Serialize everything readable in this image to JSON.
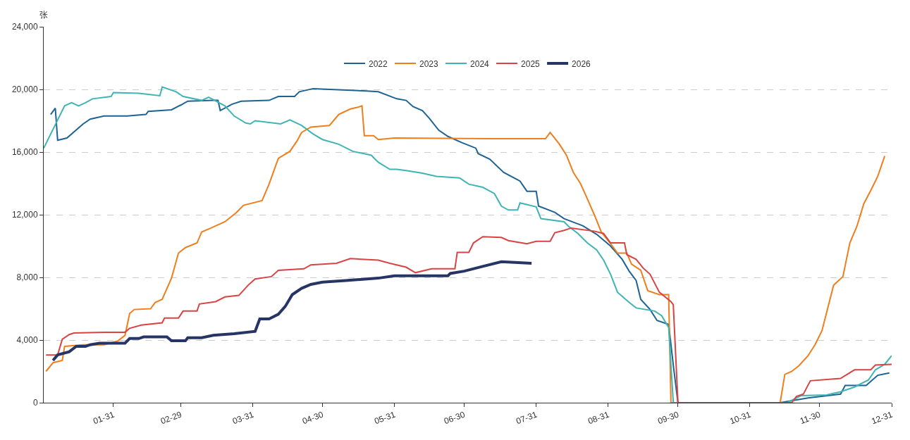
{
  "chart_data": {
    "type": "line",
    "ylabel": "张",
    "legend": "top",
    "grid": "y",
    "marker": "none",
    "line_style": "solid",
    "xlim": [
      "--01-01",
      "--12-31"
    ],
    "xticks": [
      {
        "value": "--01-31",
        "label": "01-31"
      },
      {
        "value": "--02-29",
        "label": "02-29"
      },
      {
        "value": "--03-31",
        "label": "03-31"
      },
      {
        "value": "--04-30",
        "label": "04-30"
      },
      {
        "value": "--05-31",
        "label": "05-31"
      },
      {
        "value": "--06-30",
        "label": "06-30"
      },
      {
        "value": "--07-31",
        "label": "07-31"
      },
      {
        "value": "--08-31",
        "label": "08-31"
      },
      {
        "value": "--09-30",
        "label": "09-30"
      },
      {
        "value": "--10-31",
        "label": "10-31"
      },
      {
        "value": "--11-30",
        "label": "11-30"
      },
      {
        "value": "--12-31",
        "label": "12-31"
      }
    ],
    "ylim": [
      0,
      24000
    ],
    "yticks": [
      {
        "value": 0,
        "label": "0"
      },
      {
        "value": 4000,
        "label": "4,000"
      },
      {
        "value": 8000,
        "label": "8,000"
      },
      {
        "value": 12000,
        "label": "12,000"
      },
      {
        "value": 16000,
        "label": "16,000"
      },
      {
        "value": 20000,
        "label": "20,000"
      },
      {
        "value": 24000,
        "label": "24,000"
      }
    ],
    "series": [
      {
        "name": "2022",
        "color": "#1d6394",
        "x": [
          "--01-04",
          "--01-06",
          "--01-07",
          "--01-11",
          "--01-18",
          "--01-21",
          "--01-27",
          "--02-06",
          "--02-14",
          "--02-15",
          "--02-25",
          "--02-29",
          "--03-03",
          "--03-14",
          "--03-16",
          "--03-17",
          "--03-22",
          "--03-26",
          "--04-07",
          "--04-11",
          "--04-18",
          "--04-20",
          "--04-26",
          "--05-19",
          "--05-24",
          "--06-01",
          "--06-05",
          "--06-08",
          "--06-12",
          "--06-15",
          "--06-19",
          "--06-23",
          "--06-29",
          "--07-05",
          "--07-06",
          "--07-11",
          "--07-17",
          "--07-24",
          "--07-27",
          "--07-31",
          "--08-01",
          "--08-08",
          "--08-12",
          "--08-20",
          "--08-26",
          "--09-01",
          "--09-06",
          "--09-09",
          "--09-12",
          "--09-14",
          "--09-18",
          "--09-21",
          "--09-26",
          "--09-28",
          "--09-30",
          "--11-13",
          "--11-25",
          "--12-09",
          "--12-11",
          "--12-20",
          "--12-25",
          "--12-30"
        ],
        "values": [
          18400,
          18800,
          16750,
          16900,
          17800,
          18100,
          18300,
          18300,
          18400,
          18600,
          18700,
          19000,
          19250,
          19300,
          19300,
          18650,
          19050,
          19250,
          19300,
          19550,
          19550,
          19850,
          20050,
          19900,
          19850,
          19400,
          19300,
          18900,
          18650,
          18150,
          17400,
          17000,
          16600,
          16250,
          15900,
          15550,
          14700,
          14150,
          13500,
          13500,
          12550,
          12150,
          11750,
          11300,
          10750,
          10000,
          9150,
          8400,
          7800,
          6600,
          5950,
          5250,
          5000,
          2400,
          0,
          0,
          300,
          550,
          1100,
          1100,
          1750,
          1900
        ]
      },
      {
        "name": "2023",
        "color": "#ef7e1d",
        "x": [
          "--01-02",
          "--01-05",
          "--01-09",
          "--01-10",
          "--01-18",
          "--01-27",
          "--02-02",
          "--02-05",
          "--02-07",
          "--02-09",
          "--02-16",
          "--02-18",
          "--02-21",
          "--02-25",
          "--02-28",
          "--03-02",
          "--03-07",
          "--03-09",
          "--03-13",
          "--03-19",
          "--03-24",
          "--03-27",
          "--04-04",
          "--04-07",
          "--04-11",
          "--04-16",
          "--04-19",
          "--04-21",
          "--04-25",
          "--05-03",
          "--05-07",
          "--05-12",
          "--05-15",
          "--05-17",
          "--05-18",
          "--05-22",
          "--05-24",
          "--05-31",
          "--07-11",
          "--08-04",
          "--08-06",
          "--08-10",
          "--08-13",
          "--08-16",
          "--08-19",
          "--08-21",
          "--08-25",
          "--08-28",
          "--09-01",
          "--09-04",
          "--09-08",
          "--09-10",
          "--09-14",
          "--09-17",
          "--09-22",
          "--09-26",
          "--09-27",
          "--11-13",
          "--11-15",
          "--11-18",
          "--11-21",
          "--11-25",
          "--11-28",
          "--12-01",
          "--12-06",
          "--12-10",
          "--12-13",
          "--12-16",
          "--12-19",
          "--12-22",
          "--12-25",
          "--12-28"
        ],
        "values": [
          2000,
          2550,
          2700,
          3600,
          3700,
          3700,
          3950,
          4300,
          5700,
          5950,
          6000,
          6400,
          6600,
          7950,
          9550,
          9900,
          10200,
          10900,
          11150,
          11550,
          12150,
          12600,
          12900,
          13950,
          15600,
          16050,
          16700,
          17250,
          17600,
          17700,
          18400,
          18750,
          18850,
          18950,
          17050,
          17050,
          16800,
          16900,
          16850,
          16850,
          17250,
          16500,
          15800,
          14700,
          14000,
          13350,
          12000,
          10900,
          10150,
          9550,
          9550,
          8850,
          8450,
          7150,
          6900,
          6900,
          0,
          0,
          1800,
          2000,
          2350,
          3000,
          3700,
          4600,
          7500,
          8050,
          10200,
          11250,
          12700,
          13550,
          14450,
          15750
        ]
      },
      {
        "name": "2024",
        "color": "#3fb4b4",
        "x": [
          "--01-01",
          "--01-04",
          "--01-07",
          "--01-10",
          "--01-13",
          "--01-16",
          "--01-19",
          "--01-22",
          "--01-30",
          "--01-31",
          "--02-11",
          "--02-20",
          "--02-21",
          "--02-27",
          "--03-01",
          "--03-09",
          "--03-12",
          "--03-19",
          "--03-23",
          "--03-28",
          "--03-30",
          "--04-01",
          "--04-12",
          "--04-16",
          "--04-21",
          "--04-26",
          "--04-30",
          "--05-07",
          "--05-13",
          "--05-21",
          "--05-24",
          "--05-29",
          "--06-01",
          "--06-06",
          "--06-12",
          "--06-18",
          "--06-28",
          "--07-02",
          "--07-08",
          "--07-13",
          "--07-16",
          "--07-19",
          "--07-23",
          "--07-24",
          "--07-31",
          "--08-02",
          "--08-12",
          "--08-14",
          "--08-18",
          "--08-22",
          "--08-26",
          "--08-29",
          "--09-01",
          "--09-04",
          "--09-09",
          "--09-12",
          "--09-20",
          "--09-23",
          "--09-26",
          "--09-28",
          "--11-16",
          "--11-22",
          "--12-03",
          "--12-09",
          "--12-15",
          "--12-21",
          "--12-24",
          "--12-28",
          "--12-31"
        ],
        "values": [
          16250,
          17150,
          18050,
          18950,
          19150,
          18950,
          19150,
          19400,
          19550,
          19800,
          19750,
          19600,
          20150,
          19850,
          19550,
          19300,
          19500,
          18950,
          18300,
          17850,
          17800,
          18000,
          17800,
          18050,
          17700,
          17150,
          16800,
          16500,
          16050,
          15800,
          15350,
          14900,
          14900,
          14800,
          14650,
          14450,
          14350,
          13950,
          13750,
          13350,
          12550,
          12300,
          12300,
          12750,
          12500,
          11750,
          11550,
          11250,
          10800,
          10200,
          9750,
          9100,
          8200,
          7050,
          6400,
          6050,
          5850,
          5550,
          4800,
          0,
          0,
          450,
          500,
          700,
          1000,
          1450,
          2100,
          2450,
          3000
        ]
      },
      {
        "name": "2025",
        "color": "#d94343",
        "x": [
          "--01-02",
          "--01-07",
          "--01-09",
          "--01-12",
          "--01-14",
          "--01-27",
          "--02-05",
          "--02-07",
          "--02-12",
          "--02-21",
          "--02-22",
          "--02-28",
          "--03-01",
          "--03-07",
          "--03-08",
          "--03-15",
          "--03-19",
          "--03-25",
          "--03-29",
          "--04-01",
          "--04-08",
          "--04-11",
          "--04-22",
          "--04-25",
          "--05-06",
          "--05-12",
          "--05-24",
          "--05-29",
          "--06-05",
          "--06-09",
          "--06-16",
          "--06-26",
          "--06-27",
          "--07-02",
          "--07-04",
          "--07-08",
          "--07-16",
          "--07-19",
          "--07-27",
          "--07-31",
          "--08-06",
          "--08-08",
          "--08-12",
          "--08-15",
          "--08-25",
          "--08-29",
          "--09-01",
          "--09-07",
          "--09-08",
          "--09-12",
          "--09-15",
          "--09-18",
          "--09-22",
          "--09-27",
          "--09-28",
          "--09-30",
          "--11-18",
          "--11-20",
          "--11-23",
          "--11-26",
          "--12-09",
          "--12-15",
          "--12-22",
          "--12-24",
          "--12-31"
        ],
        "values": [
          3050,
          3050,
          4050,
          4350,
          4450,
          4500,
          4500,
          4750,
          4950,
          5100,
          5400,
          5400,
          5850,
          5850,
          6300,
          6450,
          6750,
          6850,
          7500,
          7900,
          8050,
          8450,
          8550,
          8800,
          8900,
          9200,
          9100,
          8900,
          8650,
          8300,
          8550,
          8550,
          9600,
          9600,
          10200,
          10600,
          10550,
          10350,
          10150,
          10300,
          10300,
          10850,
          11000,
          11150,
          10950,
          10800,
          10200,
          10200,
          9450,
          9150,
          8600,
          8200,
          7050,
          6450,
          6250,
          0,
          0,
          400,
          550,
          1400,
          1550,
          2100,
          2100,
          2400,
          2450
        ]
      },
      {
        "name": "2026",
        "color": "#263566",
        "x": [
          "--01-05",
          "--01-07",
          "--01-12",
          "--01-15",
          "--01-19",
          "--01-21",
          "--01-25",
          "--02-05",
          "--02-07",
          "--02-11",
          "--02-13",
          "--02-23",
          "--02-25",
          "--03-02",
          "--03-03",
          "--03-09",
          "--03-14",
          "--03-23",
          "--04-01",
          "--04-03",
          "--04-07",
          "--04-11",
          "--04-14",
          "--04-17",
          "--04-21",
          "--04-25",
          "--04-30",
          "--05-10",
          "--05-24",
          "--05-31",
          "--06-23",
          "--06-24",
          "--06-30",
          "--07-08",
          "--07-16",
          "--07-29"
        ],
        "values": [
          2700,
          3050,
          3250,
          3600,
          3600,
          3700,
          3800,
          3800,
          4100,
          4100,
          4200,
          4200,
          3950,
          3950,
          4150,
          4150,
          4300,
          4400,
          4550,
          5350,
          5350,
          5650,
          6150,
          6900,
          7300,
          7550,
          7700,
          7800,
          7950,
          8100,
          8100,
          8250,
          8400,
          8700,
          9000,
          8900
        ]
      }
    ]
  }
}
